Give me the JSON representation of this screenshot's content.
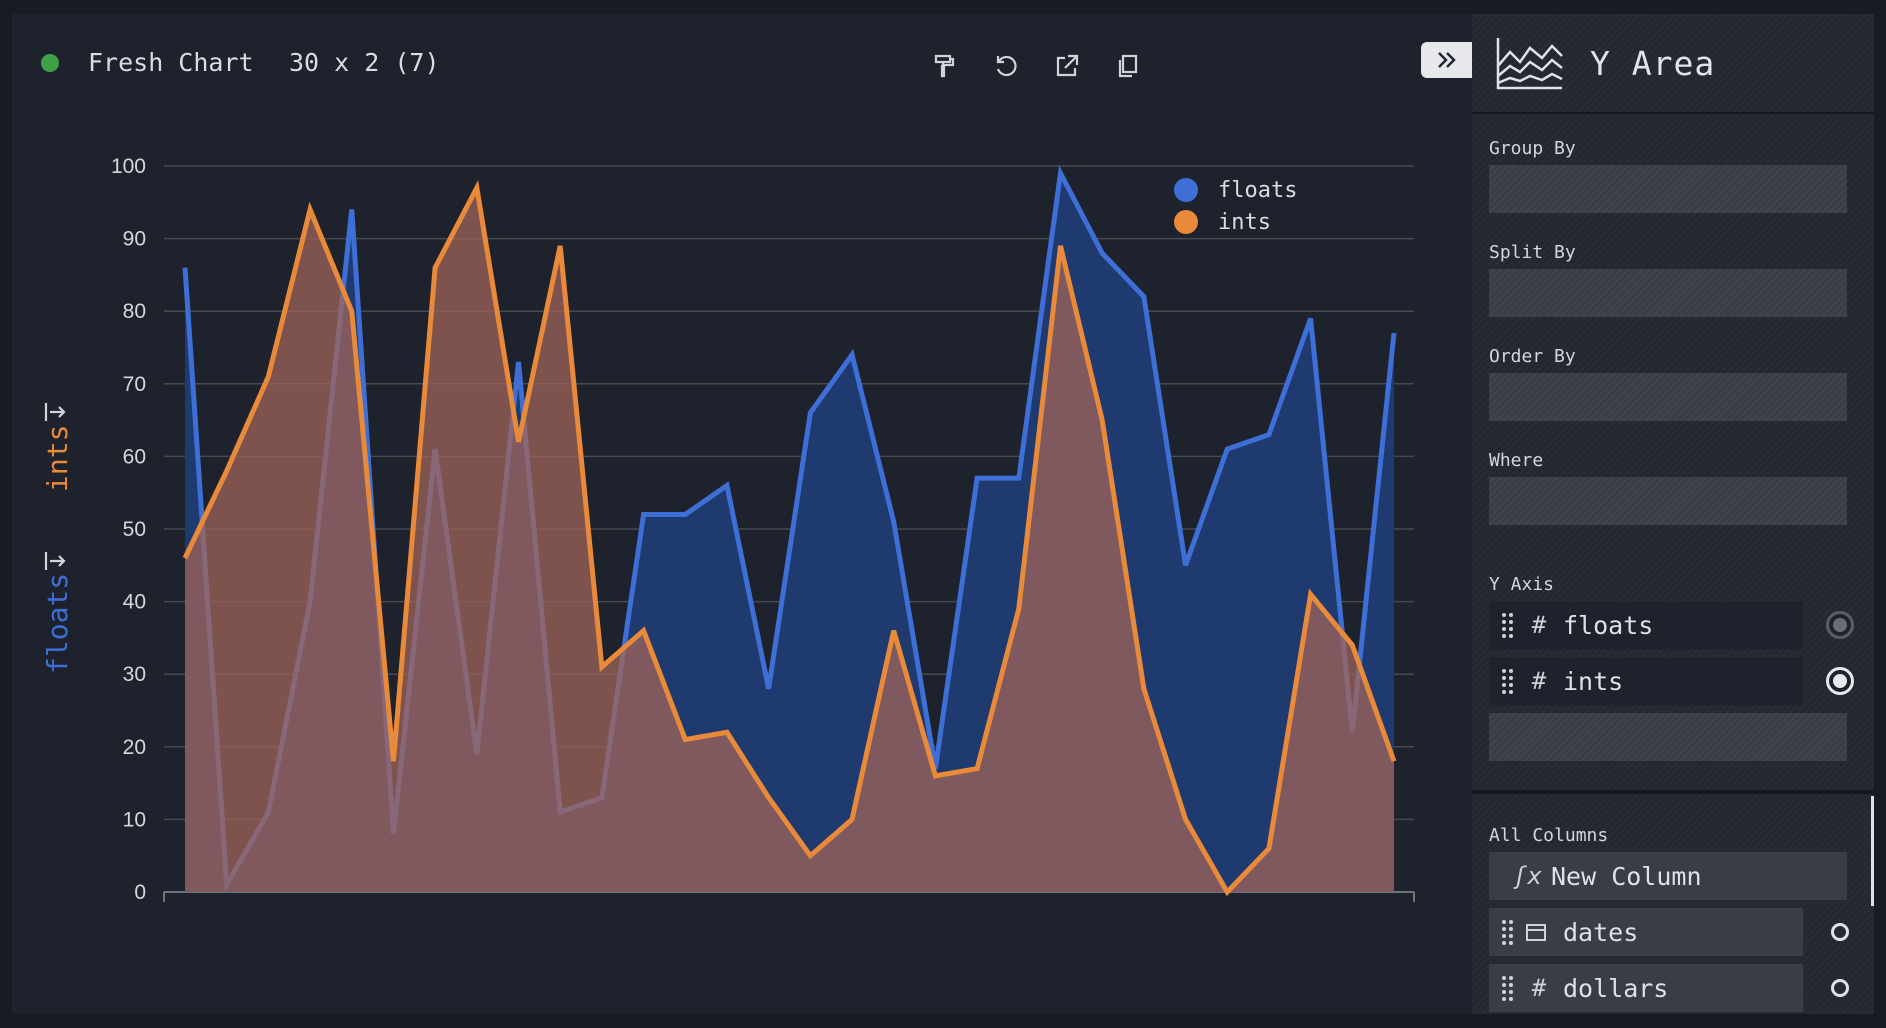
{
  "header": {
    "title": "Fresh Chart",
    "dimensions": "30 x 2 (7)",
    "status_color": "#3fa046",
    "tools": [
      "paint-roller-icon",
      "undo-icon",
      "export-icon",
      "copy-icon"
    ],
    "collapse_icon": "double-chevron-right-icon"
  },
  "sidebar": {
    "plugin_name": "Y Area",
    "plugin_icon": "area-chart-icon",
    "group_by_label": "Group By",
    "split_by_label": "Split By",
    "order_by_label": "Order By",
    "where_label": "Where",
    "y_axis_label": "Y Axis",
    "y_axis_columns": [
      {
        "type_icon": "#",
        "name": "floats"
      },
      {
        "type_icon": "#",
        "name": "ints"
      }
    ],
    "all_columns_label": "All Columns",
    "new_column_label": "New Column",
    "all_columns": [
      {
        "type_icon": "calendar-icon",
        "name": "dates"
      },
      {
        "type_icon": "#",
        "name": "dollars"
      }
    ]
  },
  "chart_data": {
    "type": "area",
    "ylim": [
      0,
      100
    ],
    "yticks": [
      0,
      10,
      20,
      30,
      40,
      50,
      60,
      70,
      80,
      90,
      100
    ],
    "grid": true,
    "legend_position": "top-right",
    "series": [
      {
        "name": "floats",
        "color": "#3e6fd6",
        "fill": "#1f3a6e",
        "values": [
          86,
          1,
          11,
          40,
          94,
          8,
          61,
          19,
          73,
          11,
          13,
          52,
          52,
          56,
          28,
          66,
          74,
          51,
          17,
          57,
          57,
          99,
          88,
          82,
          45,
          61,
          63,
          79,
          22,
          77
        ]
      },
      {
        "name": "ints",
        "color": "#e88a3a",
        "fill": "rgba(160,100,88,0.75)",
        "values": [
          46,
          58,
          71,
          94,
          80,
          18,
          86,
          97,
          62,
          89,
          31,
          36,
          21,
          22,
          13,
          5,
          10,
          36,
          16,
          17,
          39,
          89,
          65,
          28,
          10,
          0,
          6,
          41,
          34,
          18
        ]
      }
    ],
    "axis_labels": [
      "ints",
      "floats"
    ],
    "axis_label_colors": [
      "#e88a3a",
      "#3e6fd6"
    ]
  }
}
